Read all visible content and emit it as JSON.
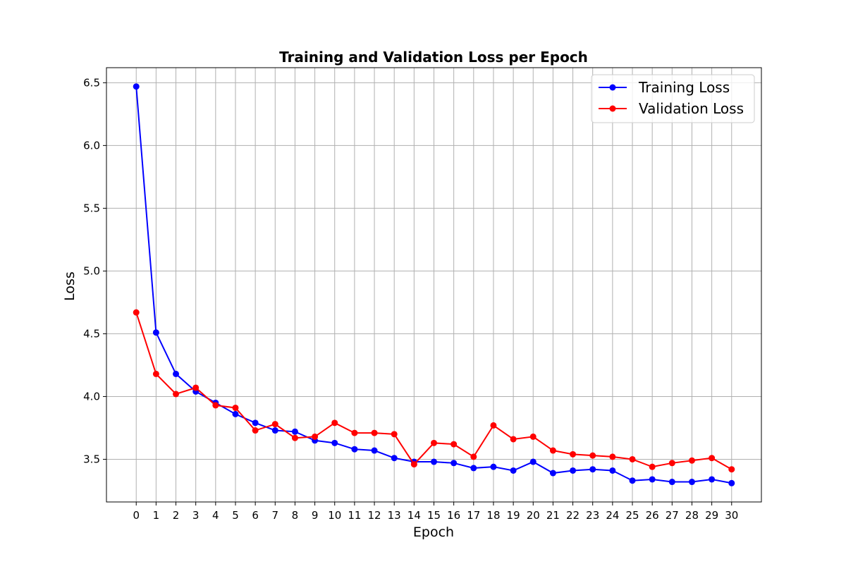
{
  "chart_data": {
    "type": "line",
    "title": "Training and Validation Loss per Epoch",
    "xlabel": "Epoch",
    "ylabel": "Loss",
    "x": [
      0,
      1,
      2,
      3,
      4,
      5,
      6,
      7,
      8,
      9,
      10,
      11,
      12,
      13,
      14,
      15,
      16,
      17,
      18,
      19,
      20,
      21,
      22,
      23,
      24,
      25,
      26,
      27,
      28,
      29,
      30
    ],
    "xticks": [
      0,
      1,
      2,
      3,
      4,
      5,
      6,
      7,
      8,
      9,
      10,
      11,
      12,
      13,
      14,
      15,
      16,
      17,
      18,
      19,
      20,
      21,
      22,
      23,
      24,
      25,
      26,
      27,
      28,
      29,
      30
    ],
    "yticks": [
      3.5,
      4.0,
      4.5,
      5.0,
      5.5,
      6.0,
      6.5
    ],
    "ylim": [
      3.16,
      6.62
    ],
    "xlim": [
      -1.5,
      31.5
    ],
    "grid": true,
    "legend_position": "top-right",
    "series": [
      {
        "name": "Training Loss",
        "color": "#0000ff",
        "values": [
          6.47,
          4.51,
          4.18,
          4.04,
          3.95,
          3.86,
          3.79,
          3.73,
          3.72,
          3.65,
          3.63,
          3.58,
          3.57,
          3.51,
          3.48,
          3.48,
          3.47,
          3.43,
          3.44,
          3.41,
          3.48,
          3.39,
          3.41,
          3.42,
          3.41,
          3.33,
          3.34,
          3.32,
          3.32,
          3.34,
          3.31
        ]
      },
      {
        "name": "Validation Loss",
        "color": "#ff0000",
        "values": [
          4.67,
          4.18,
          4.02,
          4.07,
          3.93,
          3.91,
          3.73,
          3.78,
          3.67,
          3.68,
          3.79,
          3.71,
          3.71,
          3.7,
          3.46,
          3.63,
          3.62,
          3.52,
          3.77,
          3.66,
          3.68,
          3.57,
          3.54,
          3.53,
          3.52,
          3.5,
          3.44,
          3.47,
          3.49,
          3.51,
          3.42
        ]
      }
    ]
  }
}
